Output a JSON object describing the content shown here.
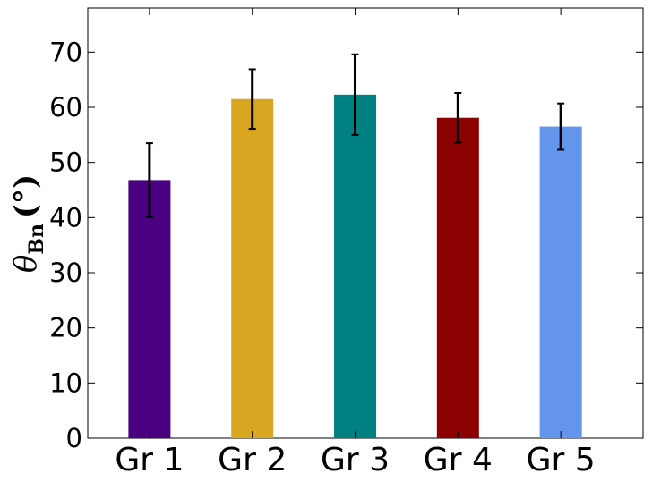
{
  "chart_data": {
    "type": "bar",
    "categories": [
      "Gr 1",
      "Gr 2",
      "Gr 3",
      "Gr 4",
      "Gr 5"
    ],
    "values": [
      46.8,
      61.5,
      62.3,
      58.1,
      56.5
    ],
    "errors": [
      6.7,
      5.4,
      7.3,
      4.5,
      4.2
    ],
    "colors": [
      "#4b0082",
      "#daa520",
      "#008080",
      "#8b0000",
      "#6495ed"
    ],
    "title": "",
    "xlabel": "",
    "ylabel_symbol": "θ",
    "ylabel_subscript": "Bn",
    "ylabel_unit": "(°)",
    "ylim": [
      0,
      78
    ],
    "yticks": [
      0,
      10,
      20,
      30,
      40,
      50,
      60,
      70
    ],
    "grid": false,
    "legend": "none"
  }
}
